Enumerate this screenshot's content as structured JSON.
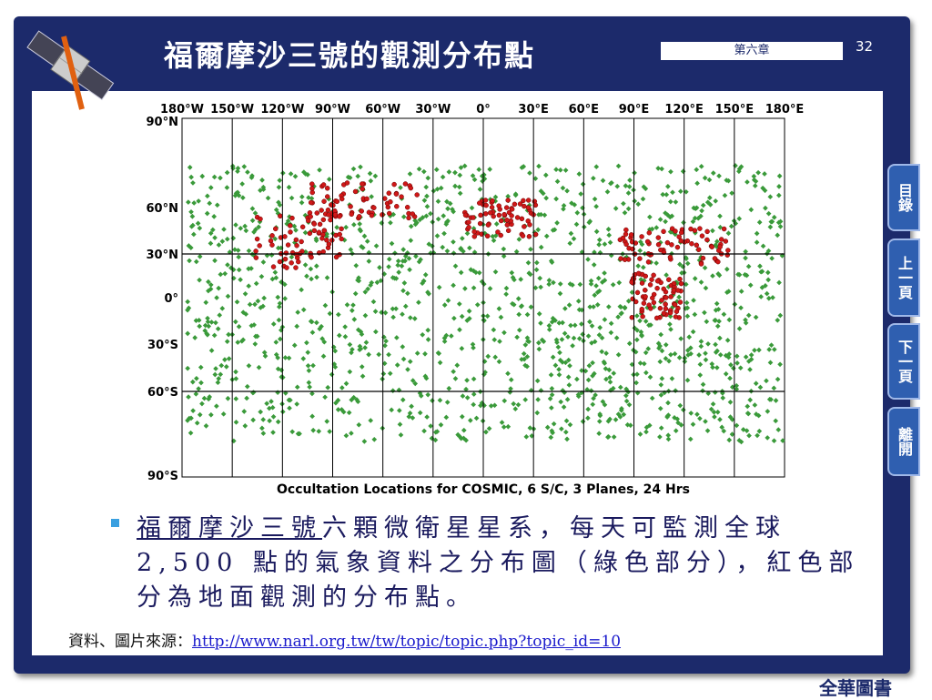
{
  "header": {
    "title": "福爾摩沙三號的觀測分布點",
    "chapter": "第六章",
    "page": "32"
  },
  "nav": [
    "目錄",
    "上一頁",
    "下一頁",
    "離開"
  ],
  "figure": {
    "top_labels": [
      "180°W",
      "150°W",
      "120°W",
      "90°W",
      "60°W",
      "30°W",
      "0°",
      "30°E",
      "60°E",
      "90°E",
      "120°E",
      "150°E",
      "180°E"
    ],
    "left_labels": [
      "90°N",
      "60°N",
      "30°N",
      "0°",
      "30°S",
      "60°S",
      "90°S"
    ],
    "caption": "Occultation Locations for COSMIC, 6 S/C, 3 Planes, 24 Hrs"
  },
  "bullet": {
    "link_text": "福爾摩沙三號",
    "text": "六顆微衛星星系，每天可監測全球2,500 點的氣象資料之分布圖（綠色部分），紅色部分為地面觀測的分布點。"
  },
  "source": {
    "label": "資料、圖片來源：",
    "url": "http://www.narl.org.tw/tw/topic/topic.php?topic_id=10"
  },
  "footer": {
    "brand": "全華圖書"
  }
}
